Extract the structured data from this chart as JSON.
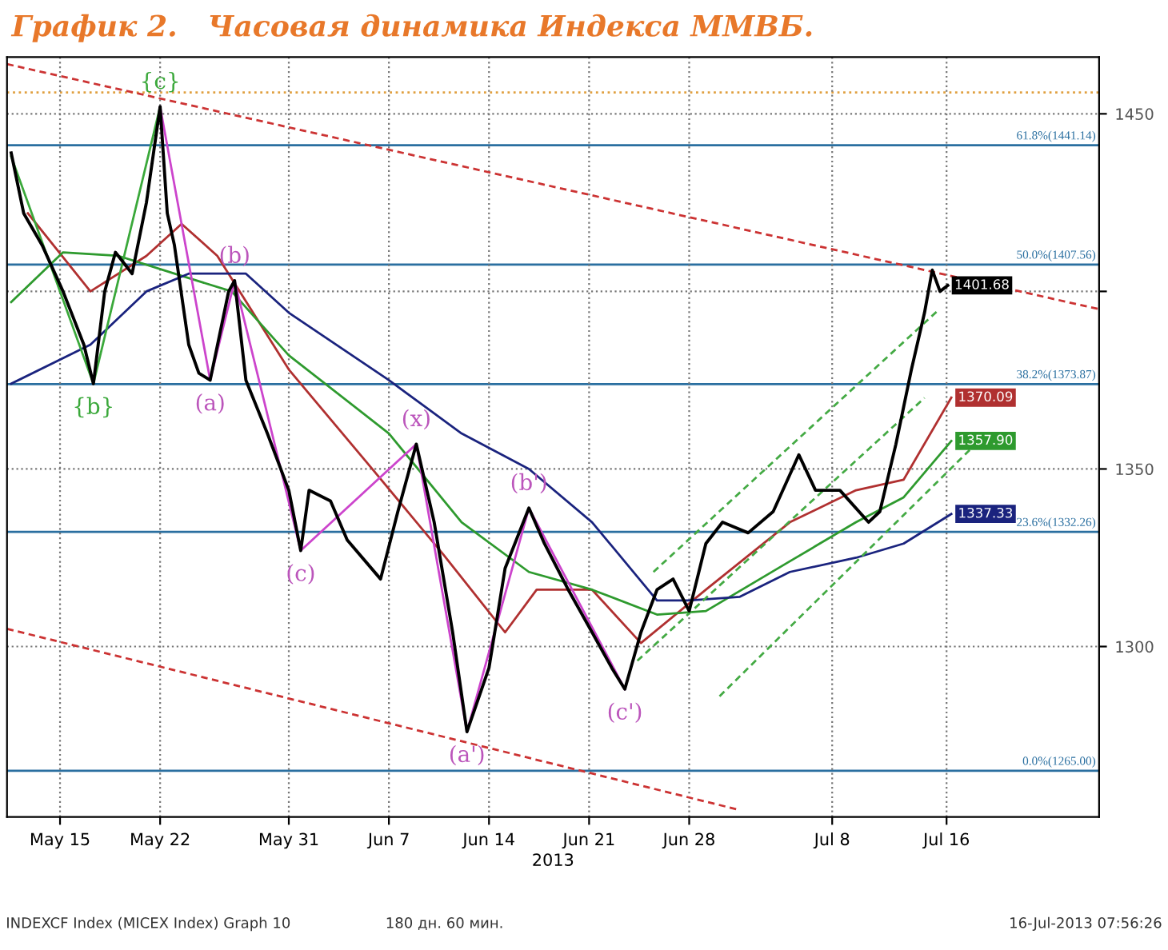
{
  "chart_data": {
    "type": "line",
    "title": "График 2.   Часовая динамика Индекса ММВБ.",
    "xlabel": "2013",
    "xlim": [
      "2013-05-11T07:00",
      "2013-07-26T16:00"
    ],
    "ylim": [
      1252,
      1466
    ],
    "xticks": [
      {
        "value": "2013-05-15",
        "label": "May 15"
      },
      {
        "value": "2013-05-22",
        "label": "May 22"
      },
      {
        "value": "2013-05-31",
        "label": "May 31"
      },
      {
        "value": "2013-06-07",
        "label": "Jun 7"
      },
      {
        "value": "2013-06-14",
        "label": "Jun 14"
      },
      {
        "value": "2013-06-21",
        "label": "Jun 21"
      },
      {
        "value": "2013-06-28",
        "label": "Jun 28"
      },
      {
        "value": "2013-07-08",
        "label": "Jul 8"
      },
      {
        "value": "2013-07-16",
        "label": "Jul 16"
      }
    ],
    "yticks": [
      1450,
      {
        "value": 1400,
        "label": null
      },
      1350,
      1300
    ],
    "grid": true,
    "legend": false,
    "series": [
      {
        "color": "#000000",
        "x": [
          "2013-05-11T14:00",
          "2013-05-12T11:00",
          "2013-05-13T18:00",
          "2013-05-15T05:00",
          "2013-05-16T16:00",
          "2013-05-17T08:00",
          "2013-05-18T03:00",
          "2013-05-18T21:00",
          "2013-05-20T01:00",
          "2013-05-21T01:00",
          "2013-05-22T00:00",
          "2013-05-22T12:00",
          "2013-05-23T00:00",
          "2013-05-24T00:00",
          "2013-05-24T17:00",
          "2013-05-25T12:00",
          "2013-05-26T19:00",
          "2013-05-27T05:00",
          "2013-05-28T00:00",
          "2013-05-29T12:00",
          "2013-05-31T00:00",
          "2013-05-31T20:00",
          "2013-06-01T10:00",
          "2013-06-02T22:00",
          "2013-06-04T02:00",
          "2013-06-06T10:00",
          "2013-06-07T15:00",
          "2013-06-08T22:00",
          "2013-06-10T04:00",
          "2013-06-11T11:00",
          "2013-06-12T11:00",
          "2013-06-14T00:00",
          "2013-06-15T03:00",
          "2013-06-16T19:00",
          "2013-06-17T21:00",
          "2013-06-19T13:00",
          "2013-06-21T05:00",
          "2013-06-22T14:00",
          "2013-06-23T12:00",
          "2013-06-24T15:00",
          "2013-06-25T18:00",
          "2013-06-26T21:00",
          "2013-06-28T00:00",
          "2013-06-29T04:00",
          "2013-06-30T08:00",
          "2013-07-02T03:00",
          "2013-07-03T21:00",
          "2013-07-05T16:00",
          "2013-07-06T20:00",
          "2013-07-08T13:00",
          "2013-07-10T13:00",
          "2013-07-11T08:00",
          "2013-07-12T11:00",
          "2013-07-13T13:00",
          "2013-07-14T11:00",
          "2013-07-15T00:00",
          "2013-07-15T13:00",
          "2013-07-16T02:00"
        ],
        "values": [
          1439,
          1422,
          1413,
          1400,
          1385,
          1374,
          1400,
          1411,
          1405,
          1425,
          1452,
          1422,
          1413,
          1385,
          1377,
          1375,
          1400,
          1403,
          1375,
          1360,
          1344,
          1327,
          1344,
          1341,
          1330,
          1319,
          1338,
          1357,
          1335,
          1304,
          1276,
          1294,
          1322,
          1339,
          1329,
          1316,
          1304,
          1294,
          1288,
          1304,
          1316,
          1319,
          1310,
          1329,
          1335,
          1332,
          1338,
          1354,
          1344,
          1344,
          1335,
          1338,
          1357,
          1378,
          1394,
          1406,
          1400,
          1401.68
        ],
        "value_labels": [
          null,
          null,
          null,
          null,
          null,
          null,
          null,
          null,
          null,
          null,
          null,
          null,
          null,
          null,
          null,
          null,
          null,
          null,
          null,
          null,
          null,
          null,
          null,
          null,
          null,
          null,
          null,
          null,
          null,
          null,
          null,
          null,
          null,
          null,
          null,
          null,
          null,
          null,
          null,
          null,
          null,
          null,
          null,
          null,
          null,
          null,
          null,
          null,
          null,
          null,
          null,
          null,
          null,
          null,
          null,
          null,
          null,
          "1401.68"
        ]
      },
      {
        "color": "#b03030",
        "x": [
          "2013-05-12T18:00",
          "2013-05-17T03:00",
          "2013-05-21T01:00",
          "2013-05-23T12:00",
          "2013-05-26T00:00",
          "2013-05-31T00:00",
          "2013-06-05T20:00",
          "2013-06-10T19:00",
          "2013-06-15T03:00",
          "2013-06-17T08:00",
          "2013-06-21T05:00",
          "2013-06-24T15:00",
          "2013-06-29T04:00",
          "2013-07-05T01:00",
          "2013-07-09T16:00",
          "2013-07-13T00:00",
          "2013-07-16T08:00"
        ],
        "values": [
          1422,
          1400,
          1410,
          1419,
          1410,
          1378,
          1350,
          1326,
          1304,
          1316,
          1316,
          1301,
          1316,
          1335,
          1344,
          1347,
          1370.09
        ],
        "value_labels": [
          null,
          null,
          null,
          null,
          null,
          null,
          null,
          null,
          null,
          null,
          null,
          null,
          null,
          null,
          null,
          null,
          "1370.09"
        ]
      },
      {
        "color": "#2e9a2e",
        "x": [
          "2013-05-11T14:00",
          "2013-05-15T05:00",
          "2013-05-19T02:00",
          "2013-05-23T00:00",
          "2013-05-27T00:00",
          "2013-05-31T00:00",
          "2013-06-07T00:00",
          "2013-06-12T02:00",
          "2013-06-16T19:00",
          "2013-06-21T05:00",
          "2013-06-25T18:00",
          "2013-06-29T04:00",
          "2013-07-05T01:00",
          "2013-07-09T16:00",
          "2013-07-13T00:00",
          "2013-07-16T08:00"
        ],
        "values": [
          1397,
          1411,
          1410,
          1405,
          1400,
          1382,
          1360,
          1335,
          1321,
          1316,
          1309,
          1310,
          1324,
          1335,
          1342,
          1357.9
        ],
        "value_labels": [
          null,
          null,
          null,
          null,
          null,
          null,
          null,
          null,
          null,
          null,
          null,
          null,
          null,
          null,
          null,
          "1357.90"
        ]
      },
      {
        "color": "#1a237e",
        "x": [
          "2013-05-11T14:00",
          "2013-05-17T03:00",
          "2013-05-21T01:00",
          "2013-05-24T00:00",
          "2013-05-28T00:00",
          "2013-05-31T00:00",
          "2013-06-07T00:00",
          "2013-06-12T02:00",
          "2013-06-16T19:00",
          "2013-06-21T05:00",
          "2013-06-25T18:00",
          "2013-06-28T00:00",
          "2013-07-01T13:00",
          "2013-07-05T01:00",
          "2013-07-09T16:00",
          "2013-07-13T00:00",
          "2013-07-16T08:00"
        ],
        "values": [
          1374,
          1385,
          1400,
          1405,
          1405,
          1394,
          1375,
          1360,
          1350,
          1335,
          1313,
          1313,
          1314,
          1321,
          1325,
          1329,
          1337.33
        ],
        "value_labels": [
          null,
          null,
          null,
          null,
          null,
          null,
          null,
          null,
          null,
          null,
          null,
          null,
          null,
          null,
          null,
          null,
          "1337.33"
        ]
      },
      {
        "color": "#cc44cc",
        "x": [
          "2013-05-22T00:00",
          "2013-05-25T12:00",
          "2013-05-27T05:00",
          "2013-05-31T20:00",
          "2013-06-08T22:00",
          "2013-06-12T11:00",
          "2013-06-16T19:00",
          "2013-06-23T12:00"
        ],
        "values": [
          1452,
          1375,
          1403,
          1327,
          1357,
          1276,
          1339,
          1288
        ]
      },
      {
        "color": "#3aa83a",
        "x": [
          "2013-05-11T14:00",
          "2013-05-17T08:00",
          "2013-05-22T00:00"
        ],
        "values": [
          1438,
          1374,
          1452
        ]
      },
      {
        "color": "#cc3333",
        "line_style": "dashed",
        "x": [
          "2013-05-11T07:00",
          "2013-07-26T16:00"
        ],
        "values": [
          1464,
          1395
        ]
      },
      {
        "color": "#cc3333",
        "line_style": "dashed",
        "x": [
          "2013-05-11T07:00",
          "2013-07-01T12:00"
        ],
        "values": [
          1305,
          1254
        ]
      },
      {
        "color": "#44aa44",
        "line_style": "dashed",
        "x": [
          "2013-06-25T12:00",
          "2013-07-15T12:00"
        ],
        "values": [
          1321,
          1395
        ]
      },
      {
        "color": "#44aa44",
        "line_style": "dashed",
        "x": [
          "2013-06-24T09:00",
          "2013-07-14T11:00"
        ],
        "values": [
          1296,
          1370
        ]
      },
      {
        "color": "#44aa44",
        "line_style": "dashed",
        "x": [
          "2013-06-30T03:00",
          "2013-07-18T19:00"
        ],
        "values": [
          1286,
          1360
        ]
      }
    ],
    "ref_lines": [
      {
        "axis": "y",
        "value": 1441.14,
        "label": "61.8%(1441.14)",
        "color": "#2a6fa0"
      },
      {
        "axis": "y",
        "value": 1407.56,
        "label": "50.0%(1407.56)",
        "color": "#2a6fa0"
      },
      {
        "axis": "y",
        "value": 1373.87,
        "label": "38.2%(1373.87)",
        "color": "#2a6fa0"
      },
      {
        "axis": "y",
        "value": 1332.26,
        "label": "23.6%(1332.26)",
        "color": "#2a6fa0"
      },
      {
        "axis": "y",
        "value": 1265.0,
        "label": "0.0%(1265.00)",
        "color": "#2a6fa0"
      },
      {
        "axis": "y",
        "value": 1456,
        "label": null,
        "color": "#e0a040",
        "line_style": "dotted"
      }
    ],
    "annotations": [
      {
        "text": "{b}",
        "x": "2013-05-17T08:00",
        "y": 1374
      },
      {
        "text": "{c}",
        "x": "2013-05-22T00:00",
        "y": 1452
      },
      {
        "text": "(a)",
        "x": "2013-05-25T12:00",
        "y": 1375
      },
      {
        "text": "(b)",
        "x": "2013-05-27T05:00",
        "y": 1403
      },
      {
        "text": "(c)",
        "x": "2013-05-31T20:00",
        "y": 1327
      },
      {
        "text": "(x)",
        "x": "2013-06-08T22:00",
        "y": 1357
      },
      {
        "text": "(a')",
        "x": "2013-06-12T11:00",
        "y": 1276
      },
      {
        "text": "(b')",
        "x": "2013-06-16T19:00",
        "y": 1339
      },
      {
        "text": "(c')",
        "x": "2013-06-23T12:00",
        "y": 1288
      },
      "INDEXCF Index (MICEX Index) Graph 10",
      "180 дн. 60 мин.",
      "16-Jul-2013 07:56:26"
    ]
  }
}
